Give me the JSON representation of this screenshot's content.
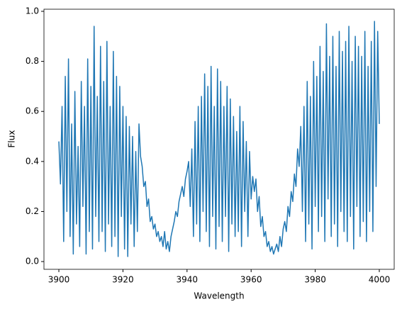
{
  "chart_data": {
    "type": "line",
    "x_label": "Wavelength",
    "y_label": "Flux",
    "xlim": [
      3895.35,
      4004.65
    ],
    "ylim": [
      -0.031,
      1.0085
    ],
    "xticks": [
      3900,
      3920,
      3940,
      3960,
      3980,
      4000
    ],
    "yticks": [
      {
        "value": 0,
        "label": "0.0"
      },
      0.2,
      0.4,
      0.6,
      0.8,
      {
        "value": 1,
        "label": "1.0"
      }
    ],
    "grid": false,
    "x": [
      3900,
      3900.5,
      3901,
      3901.5,
      3902,
      3902.5,
      3903,
      3903.5,
      3904,
      3904.5,
      3905,
      3905.5,
      3906,
      3906.5,
      3907,
      3907.5,
      3908,
      3908.5,
      3909,
      3909.5,
      3910,
      3910.5,
      3911,
      3911.5,
      3912,
      3912.5,
      3913,
      3913.5,
      3914,
      3914.5,
      3915,
      3915.5,
      3916,
      3916.5,
      3917,
      3917.5,
      3918,
      3918.5,
      3919,
      3919.5,
      3920,
      3920.5,
      3921,
      3921.5,
      3922,
      3922.5,
      3923,
      3923.5,
      3924,
      3924.5,
      3925,
      3925.5,
      3926,
      3926.5,
      3927,
      3927.5,
      3928,
      3928.5,
      3929,
      3929.5,
      3930,
      3930.5,
      3931,
      3931.5,
      3932,
      3932.5,
      3933,
      3933.5,
      3934,
      3934.5,
      3935,
      3935.5,
      3936,
      3936.5,
      3937,
      3937.5,
      3938,
      3938.5,
      3939,
      3939.5,
      3940,
      3940.5,
      3941,
      3941.5,
      3942,
      3942.5,
      3943,
      3943.5,
      3944,
      3944.5,
      3945,
      3945.5,
      3946,
      3946.5,
      3947,
      3947.5,
      3948,
      3948.5,
      3949,
      3949.5,
      3950,
      3950.5,
      3951,
      3951.5,
      3952,
      3952.5,
      3953,
      3953.5,
      3954,
      3954.5,
      3955,
      3955.5,
      3956,
      3956.5,
      3957,
      3957.5,
      3958,
      3958.5,
      3959,
      3959.5,
      3960,
      3960.5,
      3961,
      3961.5,
      3962,
      3962.5,
      3963,
      3963.5,
      3964,
      3964.5,
      3965,
      3965.5,
      3966,
      3966.5,
      3967,
      3967.5,
      3968,
      3968.5,
      3969,
      3969.5,
      3970,
      3970.5,
      3971,
      3971.5,
      3972,
      3972.5,
      3973,
      3973.5,
      3974,
      3974.5,
      3975,
      3975.5,
      3976,
      3976.5,
      3977,
      3977.5,
      3978,
      3978.5,
      3979,
      3979.5,
      3980,
      3980.5,
      3981,
      3981.5,
      3982,
      3982.5,
      3983,
      3983.5,
      3984,
      3984.5,
      3985,
      3985.5,
      3986,
      3986.5,
      3987,
      3987.5,
      3988,
      3988.5,
      3989,
      3989.5,
      3990,
      3990.5,
      3991,
      3991.5,
      3992,
      3992.5,
      3993,
      3993.5,
      3994,
      3994.5,
      3995,
      3995.5,
      3996,
      3996.5,
      3997,
      3997.5,
      3998,
      3998.5,
      3999,
      3999.5,
      4000
    ],
    "series": [
      {
        "name": "Flux",
        "color": "#1f77b4",
        "values": [
          0.48,
          0.31,
          0.62,
          0.08,
          0.74,
          0.2,
          0.81,
          0.1,
          0.55,
          0.03,
          0.68,
          0.15,
          0.46,
          0.06,
          0.72,
          0.22,
          0.62,
          0.03,
          0.81,
          0.12,
          0.7,
          0.05,
          0.94,
          0.18,
          0.66,
          0.08,
          0.86,
          0.12,
          0.72,
          0.04,
          0.88,
          0.15,
          0.62,
          0.06,
          0.84,
          0.1,
          0.74,
          0.02,
          0.7,
          0.18,
          0.62,
          0.05,
          0.58,
          0.02,
          0.54,
          0.15,
          0.5,
          0.06,
          0.44,
          0.12,
          0.55,
          0.42,
          0.38,
          0.3,
          0.32,
          0.22,
          0.25,
          0.16,
          0.18,
          0.13,
          0.15,
          0.1,
          0.12,
          0.08,
          0.1,
          0.06,
          0.12,
          0.05,
          0.08,
          0.04,
          0.1,
          0.13,
          0.16,
          0.2,
          0.18,
          0.24,
          0.27,
          0.3,
          0.26,
          0.33,
          0.36,
          0.4,
          0.22,
          0.45,
          0.1,
          0.56,
          0.15,
          0.62,
          0.08,
          0.66,
          0.2,
          0.75,
          0.12,
          0.7,
          0.06,
          0.78,
          0.18,
          0.62,
          0.05,
          0.77,
          0.14,
          0.72,
          0.08,
          0.62,
          0.18,
          0.7,
          0.04,
          0.65,
          0.15,
          0.58,
          0.1,
          0.52,
          0.12,
          0.62,
          0.06,
          0.56,
          0.2,
          0.48,
          0.1,
          0.44,
          0.25,
          0.34,
          0.28,
          0.33,
          0.2,
          0.26,
          0.14,
          0.18,
          0.1,
          0.12,
          0.06,
          0.08,
          0.04,
          0.06,
          0.03,
          0.05,
          0.07,
          0.04,
          0.1,
          0.06,
          0.13,
          0.16,
          0.12,
          0.22,
          0.18,
          0.28,
          0.24,
          0.35,
          0.3,
          0.45,
          0.38,
          0.54,
          0.2,
          0.62,
          0.08,
          0.72,
          0.15,
          0.66,
          0.05,
          0.8,
          0.22,
          0.74,
          0.12,
          0.86,
          0.18,
          0.76,
          0.08,
          0.95,
          0.25,
          0.82,
          0.1,
          0.9,
          0.15,
          0.78,
          0.06,
          0.92,
          0.2,
          0.84,
          0.12,
          0.88,
          0.08,
          0.94,
          0.18,
          0.8,
          0.05,
          0.9,
          0.22,
          0.86,
          0.1,
          0.82,
          0.16,
          0.92,
          0.08,
          0.78,
          0.2,
          0.88,
          0.12,
          0.96,
          0.3,
          0.92,
          0.55
        ]
      }
    ]
  }
}
